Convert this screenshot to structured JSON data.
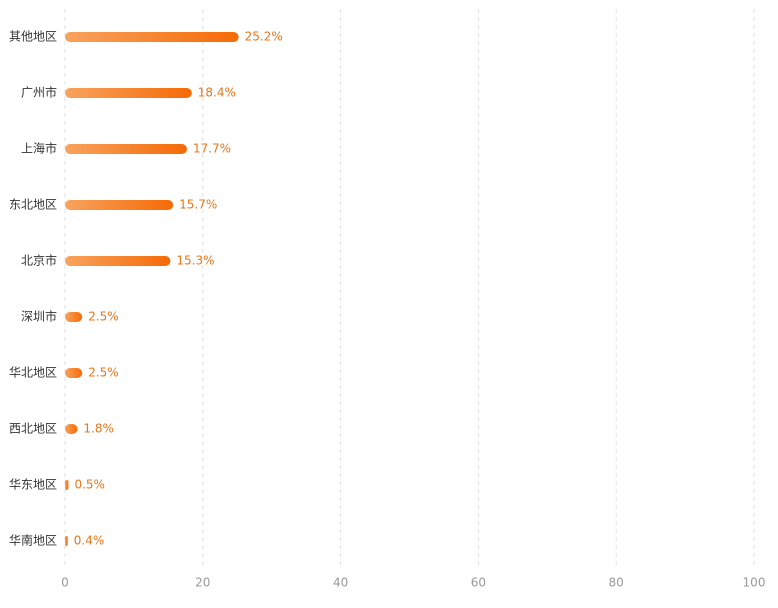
{
  "chart_data": {
    "type": "hbar",
    "categories": [
      "其他地区",
      "广州市",
      "上海市",
      "东北地区",
      "北京市",
      "深圳市",
      "华北地区",
      "西北地区",
      "华东地区",
      "华南地区"
    ],
    "values": [
      25.2,
      18.4,
      17.7,
      15.7,
      15.3,
      2.5,
      2.5,
      1.8,
      0.5,
      0.4
    ],
    "value_labels": [
      "25.2%",
      "18.4%",
      "17.7%",
      "15.7%",
      "15.3%",
      "2.5%",
      "2.5%",
      "1.8%",
      "0.5%",
      "0.4%"
    ],
    "gradient": [
      "#f8a35e",
      "#f56a06"
    ],
    "label_color": "#e8761a",
    "xlim": [
      0,
      100
    ],
    "xticks": [
      0,
      20,
      40,
      60,
      80,
      100
    ],
    "grid": true
  }
}
